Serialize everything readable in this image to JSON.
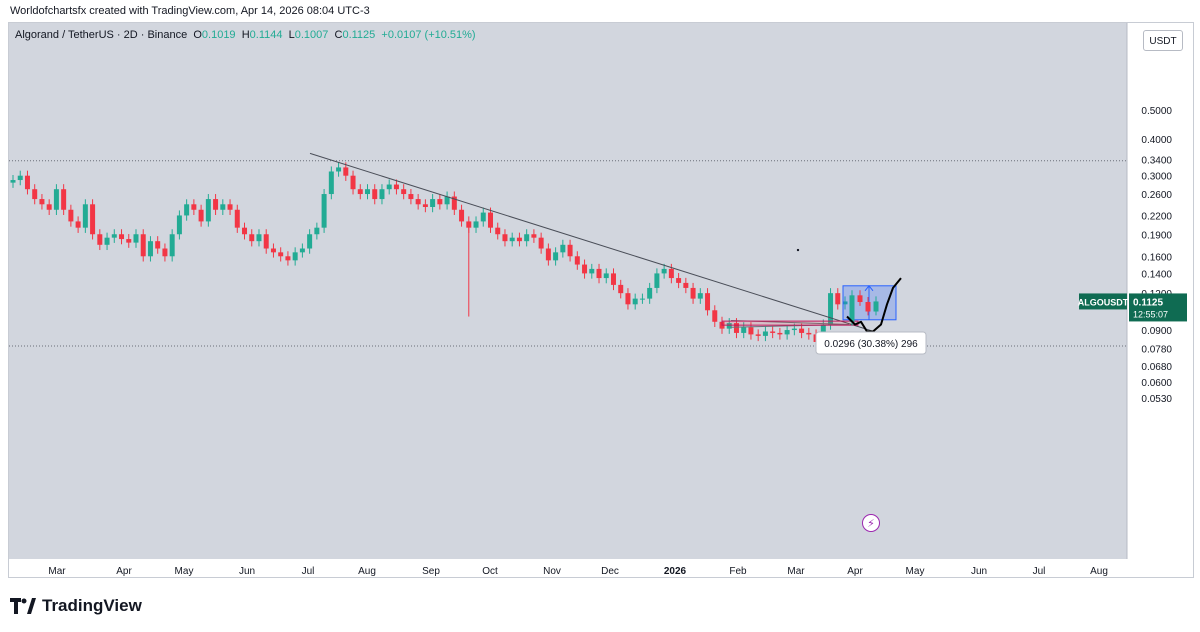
{
  "credit": "Worldofchartsfx created with TradingView.com, Apr 14, 2026 08:04 UTC-3",
  "ohlc": {
    "symbol": "Algorand / TetherUS · 2D · Binance",
    "o_label": "O",
    "o": "0.1019",
    "h_label": "H",
    "h": "0.1144",
    "l_label": "L",
    "l": "0.1007",
    "c_label": "C",
    "c": "0.1125",
    "change": "+0.0107 (+10.51%)"
  },
  "currency_button": "USDT",
  "measure_label": "0.0296 (30.38%) 296",
  "price_tag": {
    "symbol": "ALGOUSDT",
    "price": "0.1125",
    "countdown": "12:55:07"
  },
  "bolt_icon": "⚡",
  "footer_brand": "TradingView",
  "colors": {
    "up": "#22ab94",
    "down": "#f23645",
    "background": "#d2d6de",
    "accent": "#2962ff",
    "tag": "#0f6b52"
  },
  "chart_data": {
    "type": "candlestick",
    "scale": "log",
    "interval": "2D",
    "ylim": [
      0.05,
      0.55
    ],
    "y_ticks": [
      "0.5000",
      "0.4000",
      "0.3400",
      "0.3000",
      "0.2600",
      "0.2200",
      "0.1900",
      "0.1600",
      "0.1400",
      "0.1200",
      "0.0900",
      "0.0780",
      "0.0680",
      "0.0600",
      "0.0530"
    ],
    "x_ticks": [
      "Mar",
      "Apr",
      "May",
      "Jun",
      "Jul",
      "Aug",
      "Sep",
      "Oct",
      "Nov",
      "Dec",
      "2026",
      "Feb",
      "Mar",
      "Apr",
      "May",
      "Jun",
      "Jul",
      "Aug"
    ],
    "series": [
      {
        "name": "close",
        "values": [
          0.29,
          0.3,
          0.27,
          0.25,
          0.24,
          0.23,
          0.27,
          0.23,
          0.21,
          0.2,
          0.24,
          0.19,
          0.175,
          0.185,
          0.19,
          0.183,
          0.178,
          0.19,
          0.16,
          0.18,
          0.17,
          0.16,
          0.19,
          0.22,
          0.24,
          0.23,
          0.21,
          0.25,
          0.23,
          0.24,
          0.23,
          0.2,
          0.19,
          0.18,
          0.19,
          0.17,
          0.165,
          0.16,
          0.155,
          0.165,
          0.17,
          0.19,
          0.2,
          0.26,
          0.31,
          0.32,
          0.3,
          0.27,
          0.26,
          0.27,
          0.25,
          0.27,
          0.28,
          0.27,
          0.26,
          0.25,
          0.24,
          0.235,
          0.25,
          0.24,
          0.255,
          0.23,
          0.21,
          0.2,
          0.21,
          0.225,
          0.2,
          0.19,
          0.18,
          0.185,
          0.18,
          0.19,
          0.185,
          0.17,
          0.155,
          0.165,
          0.175,
          0.16,
          0.15,
          0.14,
          0.145,
          0.135,
          0.14,
          0.128,
          0.12,
          0.11,
          0.115,
          0.115,
          0.125,
          0.14,
          0.145,
          0.135,
          0.13,
          0.125,
          0.115,
          0.12,
          0.105,
          0.096,
          0.091,
          0.095,
          0.088,
          0.092,
          0.087,
          0.086,
          0.089,
          0.088,
          0.087,
          0.09,
          0.091,
          0.088,
          0.087,
          0.082,
          0.094,
          0.12,
          0.11,
          0.1125
        ]
      }
    ],
    "annotations": {
      "trendline_from": [
        0.357,
        "2025-07-05"
      ],
      "trendline_to": [
        0.083,
        "2026-04-30"
      ],
      "horizontal_levels": [
        0.337,
        0.0795
      ],
      "measure_range": [
        0.0975,
        0.1271
      ],
      "measure_text": "0.0296 (30.38%) 296",
      "last_price": 0.1125
    }
  }
}
